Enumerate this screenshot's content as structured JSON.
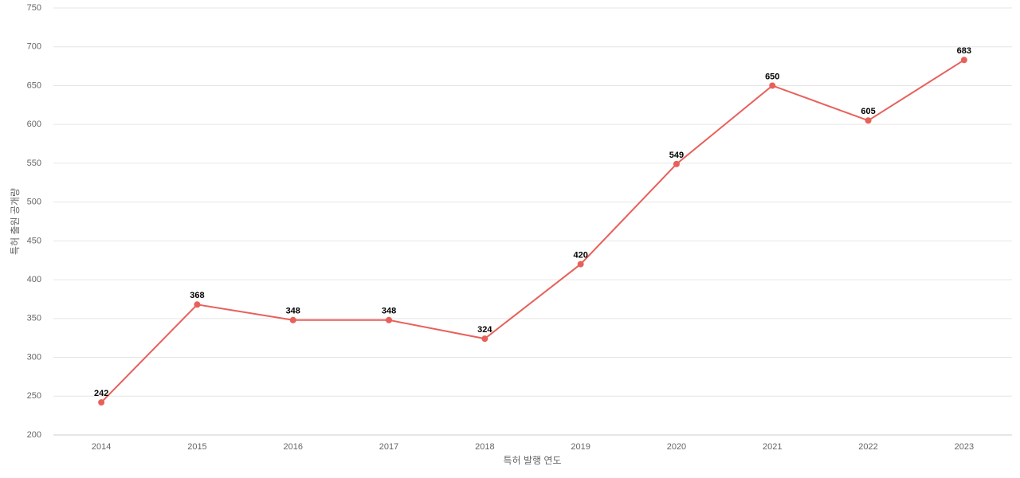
{
  "chart_data": {
    "type": "line",
    "x_label": "특허 발행 연도",
    "y_label": "특허 출원 공개량",
    "categories": [
      "2014",
      "2015",
      "2016",
      "2017",
      "2018",
      "2019",
      "2020",
      "2021",
      "2022",
      "2023"
    ],
    "values": [
      242,
      368,
      348,
      348,
      324,
      420,
      549,
      650,
      605,
      683
    ],
    "color": "#e8605a",
    "ylim": [
      200,
      750
    ],
    "yticks": [
      200,
      250,
      300,
      350,
      400,
      450,
      500,
      550,
      600,
      650,
      700,
      750
    ],
    "grid": true
  }
}
